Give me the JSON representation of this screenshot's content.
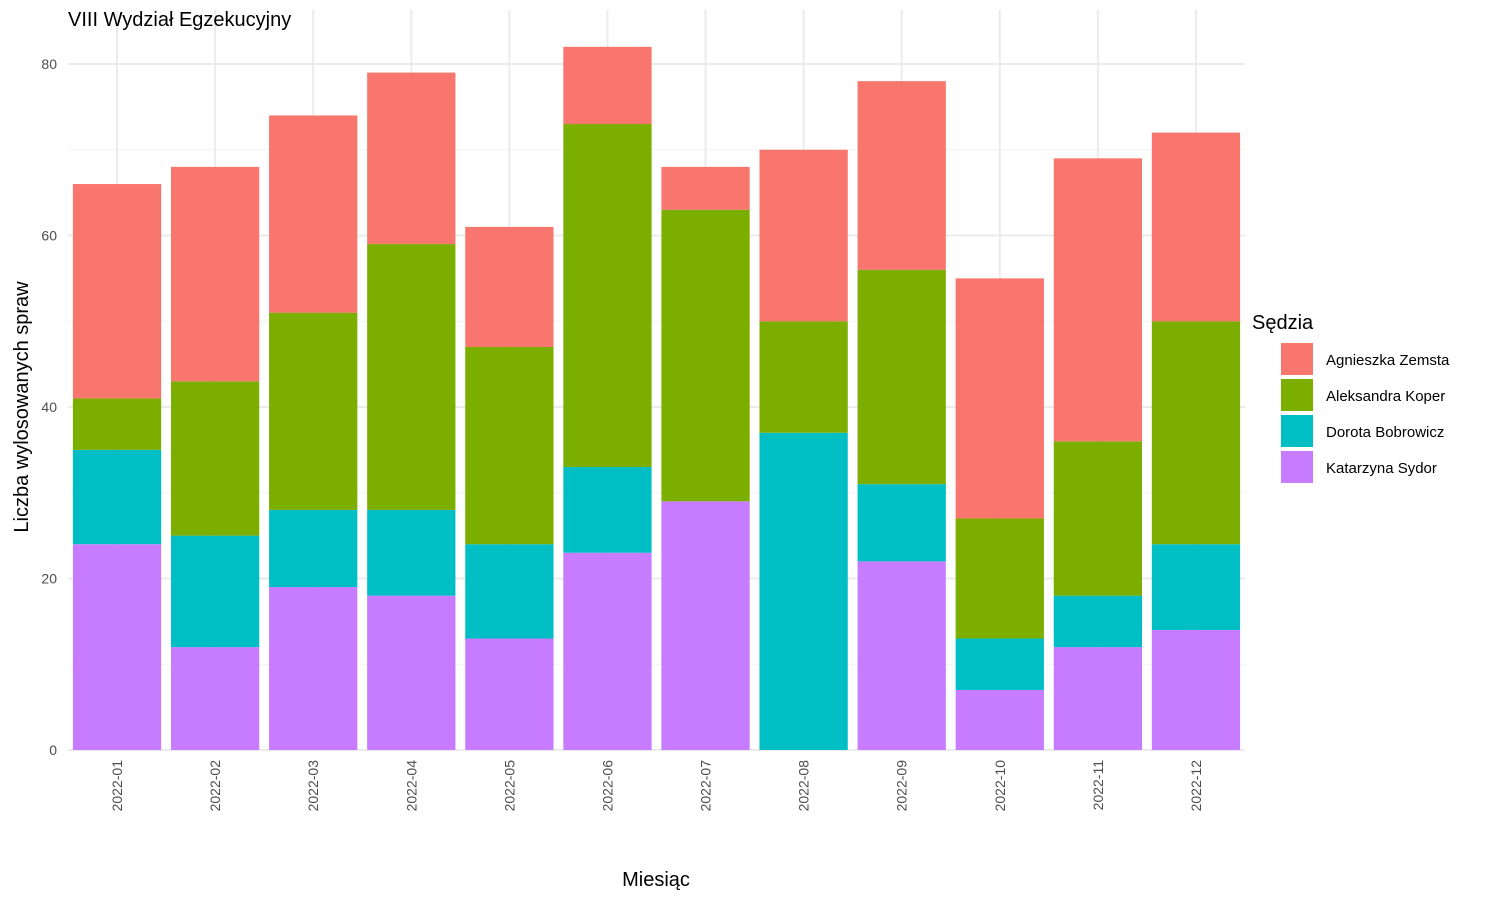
{
  "chart_data": {
    "type": "bar",
    "stacked": true,
    "title": "VIII Wydział Egzekucyjny",
    "xlabel": "Miesiąc",
    "ylabel": "Liczba wylosowanych spraw",
    "categories": [
      "2022-01",
      "2022-02",
      "2022-03",
      "2022-04",
      "2022-05",
      "2022-06",
      "2022-07",
      "2022-08",
      "2022-09",
      "2022-10",
      "2022-11",
      "2022-12"
    ],
    "ylim": [
      0,
      85
    ],
    "yticks": [
      0,
      20,
      40,
      60,
      80
    ],
    "grid": true,
    "legend": {
      "title": "Sędzia",
      "position": "right"
    },
    "series": [
      {
        "name": "Katarzyna Sydor",
        "color": "#C77CFF",
        "values": [
          24,
          12,
          19,
          18,
          13,
          23,
          29,
          0,
          22,
          7,
          12,
          14
        ]
      },
      {
        "name": "Dorota Bobrowicz",
        "color": "#00BFC4",
        "values": [
          11,
          13,
          9,
          10,
          11,
          10,
          0,
          37,
          9,
          6,
          6,
          10
        ]
      },
      {
        "name": "Aleksandra Koper",
        "color": "#7CAE00",
        "values": [
          6,
          18,
          23,
          31,
          23,
          40,
          34,
          13,
          25,
          14,
          18,
          26
        ]
      },
      {
        "name": "Agnieszka Zemsta",
        "color": "#F8766D",
        "values": [
          25,
          25,
          23,
          20,
          14,
          9,
          5,
          20,
          22,
          28,
          33,
          22
        ]
      }
    ],
    "legend_order": [
      "Agnieszka Zemsta",
      "Aleksandra Koper",
      "Dorota Bobrowicz",
      "Katarzyna Sydor"
    ]
  }
}
